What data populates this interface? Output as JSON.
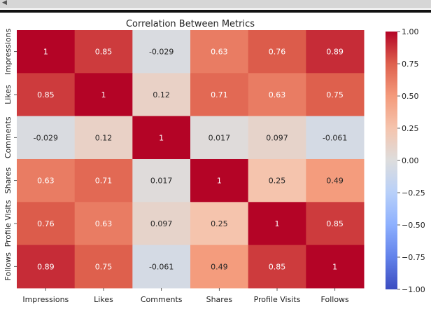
{
  "window": {
    "scroll_left_icon": "chevron-left-icon"
  },
  "chart_data": {
    "type": "heatmap",
    "title": "Correlation Between Metrics",
    "xlabel": "",
    "ylabel": "",
    "x_categories": [
      "Impressions",
      "Likes",
      "Comments",
      "Shares",
      "Profile Visits",
      "Follows"
    ],
    "y_categories": [
      "Impressions",
      "Likes",
      "Comments",
      "Shares",
      "Profile Visits",
      "Follows"
    ],
    "values": [
      [
        1,
        0.85,
        -0.029,
        0.63,
        0.76,
        0.89
      ],
      [
        0.85,
        1,
        0.12,
        0.71,
        0.63,
        0.75
      ],
      [
        -0.029,
        0.12,
        1,
        0.017,
        0.097,
        -0.061
      ],
      [
        0.63,
        0.71,
        0.017,
        1,
        0.25,
        0.49
      ],
      [
        0.76,
        0.63,
        0.097,
        0.25,
        1,
        0.85
      ],
      [
        0.89,
        0.75,
        -0.061,
        0.49,
        0.85,
        1
      ]
    ],
    "value_labels": [
      [
        "1",
        "0.85",
        "-0.029",
        "0.63",
        "0.76",
        "0.89"
      ],
      [
        "0.85",
        "1",
        "0.12",
        "0.71",
        "0.63",
        "0.75"
      ],
      [
        "-0.029",
        "0.12",
        "1",
        "0.017",
        "0.097",
        "-0.061"
      ],
      [
        "0.63",
        "0.71",
        "0.017",
        "1",
        "0.25",
        "0.49"
      ],
      [
        "0.76",
        "0.63",
        "0.097",
        "0.25",
        "1",
        "0.85"
      ],
      [
        "0.89",
        "0.75",
        "-0.061",
        "0.49",
        "0.85",
        "1"
      ]
    ],
    "colormap": "coolwarm",
    "vmin": -1,
    "vmax": 1,
    "colorbar": {
      "ticks": [
        1.0,
        0.75,
        0.5,
        0.25,
        0.0,
        -0.25,
        -0.5,
        -0.75,
        -1.0
      ],
      "tick_labels": [
        "1.00",
        "0.75",
        "0.50",
        "0.25",
        "0.00",
        "−0.25",
        "−0.50",
        "−0.75",
        "−1.00"
      ],
      "placement": "right"
    },
    "grid": false
  }
}
